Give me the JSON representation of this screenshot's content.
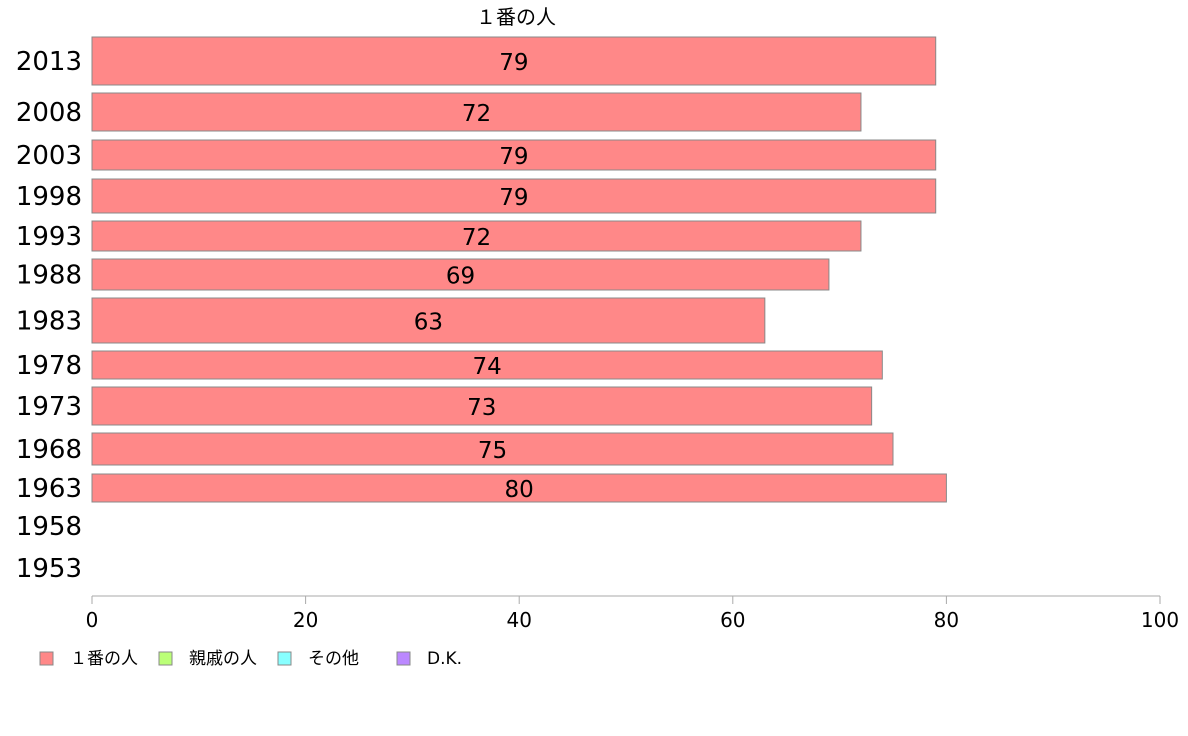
{
  "chart_data": {
    "type": "bar",
    "orientation": "horizontal",
    "title": "１番の人",
    "categories": [
      "2013",
      "2008",
      "2003",
      "1998",
      "1993",
      "1988",
      "1983",
      "1978",
      "1973",
      "1968",
      "1963",
      "1958",
      "1953"
    ],
    "series": [
      {
        "name": "１番の人",
        "color": "#ff8888",
        "values": [
          79,
          72,
          79,
          79,
          72,
          69,
          63,
          74,
          73,
          75,
          80,
          null,
          null
        ]
      },
      {
        "name": "親戚の人",
        "color": "#bbff77",
        "values": [
          null,
          null,
          null,
          null,
          null,
          null,
          null,
          null,
          null,
          null,
          null,
          null,
          null
        ]
      },
      {
        "name": "その他",
        "color": "#88ffff",
        "values": [
          null,
          null,
          null,
          null,
          null,
          null,
          null,
          null,
          null,
          null,
          null,
          null,
          null
        ]
      },
      {
        "name": "D.K.",
        "color": "#bb88ff",
        "values": [
          null,
          null,
          null,
          null,
          null,
          null,
          null,
          null,
          null,
          null,
          null,
          null,
          null
        ]
      }
    ],
    "data_labels": [
      "79",
      "72",
      "79",
      "79",
      "72",
      "69",
      "63",
      "74",
      "73",
      "75",
      "80",
      "",
      ""
    ],
    "xlim": [
      0,
      100
    ],
    "xticks": [
      0,
      20,
      40,
      60,
      80,
      100
    ],
    "xtick_labels": [
      "0",
      "20",
      "40",
      "60",
      "80",
      "100"
    ],
    "legend_position": "bottom-left",
    "grid": false
  }
}
